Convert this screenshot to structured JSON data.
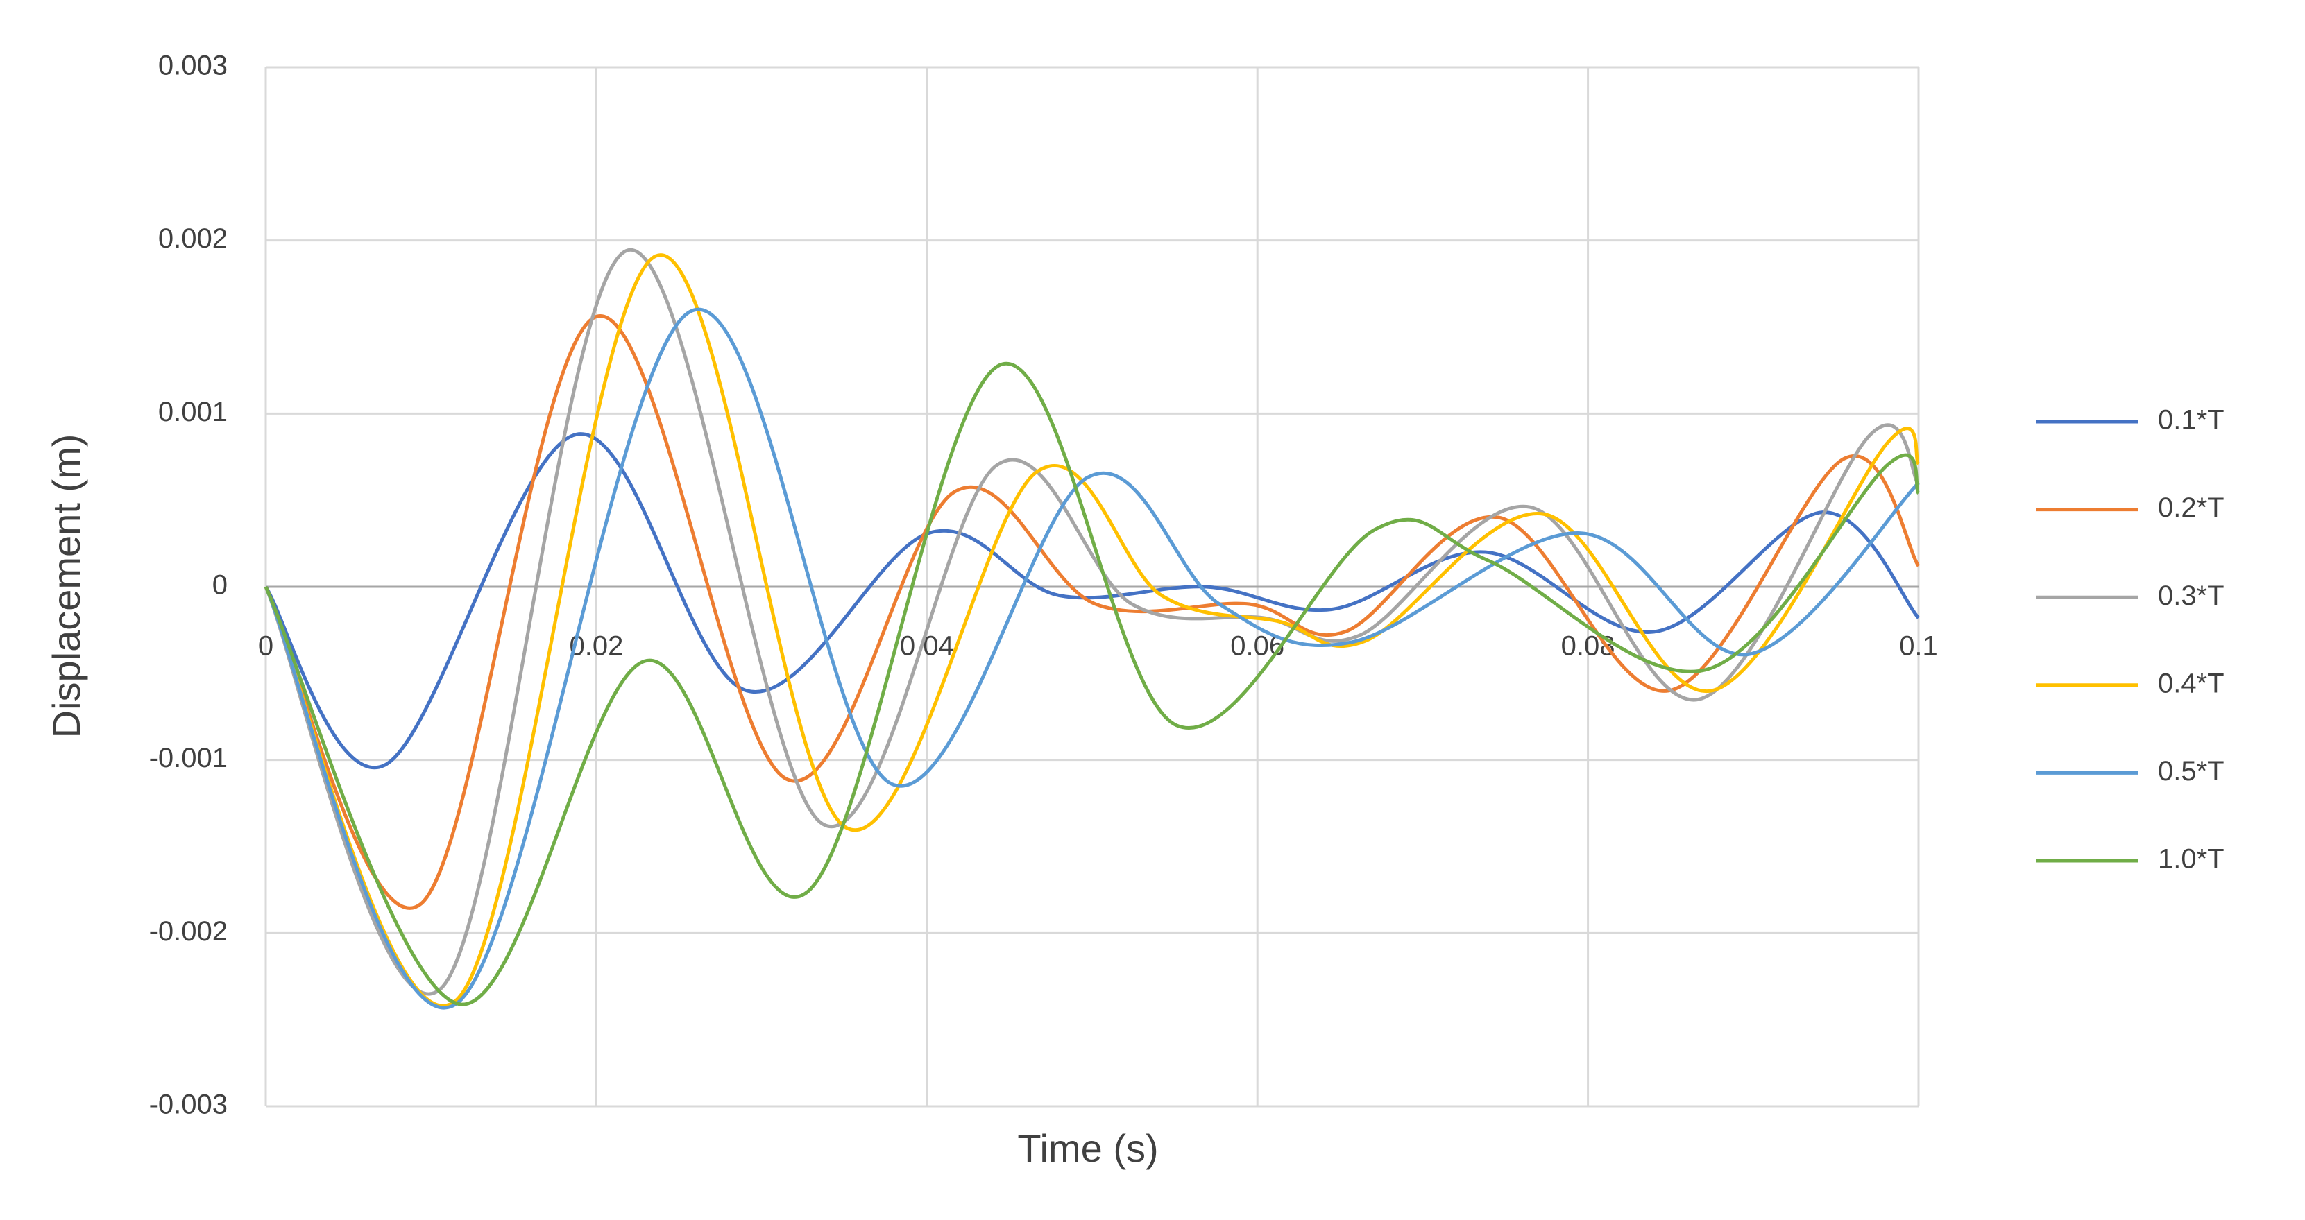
{
  "chart_data": {
    "type": "line",
    "x_label": "Time (s)",
    "y_label": "Displacement (m)",
    "xlim": [
      0,
      0.1
    ],
    "xticks": [
      0,
      0.02,
      0.04,
      0.06,
      0.08,
      0.1
    ],
    "ylim": [
      -0.003,
      0.003
    ],
    "yticks": [
      -0.003,
      -0.002,
      -0.001,
      0,
      0.001,
      0.002,
      0.003
    ],
    "grid": true,
    "legend": "right",
    "smooth": true,
    "series": [
      {
        "name": "0.1*T",
        "color": "#4472c4",
        "x": [
          0,
          0.0072,
          0.0188,
          0.0291,
          0.0401,
          0.048,
          0.0569,
          0.0645,
          0.0738,
          0.084,
          0.0942,
          0.1
        ],
        "values": [
          0,
          -0.00103,
          0.00088,
          -0.0006,
          0.00031,
          -5e-05,
          0,
          -0.00013,
          0.0002,
          -0.00026,
          0.00043,
          -0.00018
        ]
      },
      {
        "name": "0.2*T",
        "color": "#ed7d31",
        "x": [
          0,
          0.0094,
          0.02,
          0.0315,
          0.0417,
          0.0502,
          0.0595,
          0.0653,
          0.0746,
          0.0849,
          0.0955,
          0.1
        ],
        "values": [
          0,
          -0.00183,
          0.00156,
          -0.00111,
          0.00055,
          -0.0001,
          -0.0001,
          -0.00026,
          0.0004,
          -0.0006,
          0.00074,
          0.00012
        ]
      },
      {
        "name": "0.3*T",
        "color": "#a5a5a5",
        "x": [
          0,
          0.0106,
          0.0218,
          0.0337,
          0.0442,
          0.0524,
          0.0604,
          0.0662,
          0.0765,
          0.0867,
          0.0971,
          0.1
        ],
        "values": [
          0,
          -0.00232,
          0.00194,
          -0.00137,
          0.0007,
          -0.0001,
          -0.00018,
          -0.00028,
          0.00046,
          -0.00065,
          0.00088,
          0.00059
        ]
      },
      {
        "name": "0.4*T",
        "color": "#ffc000",
        "x": [
          0,
          0.0115,
          0.0236,
          0.0351,
          0.0466,
          0.0542,
          0.0613,
          0.0666,
          0.0773,
          0.0875,
          0.0982,
          0.1
        ],
        "values": [
          0,
          -0.00239,
          0.00191,
          -0.00139,
          0.00066,
          -5e-05,
          -0.0002,
          -0.00031,
          0.00042,
          -0.0006,
          0.00084,
          0.00071
        ]
      },
      {
        "name": "0.5*T",
        "color": "#5b9bd5",
        "x": [
          0,
          0.0115,
          0.0257,
          0.0379,
          0.0497,
          0.0577,
          0.0657,
          0.0795,
          0.0897,
          0.1
        ],
        "values": [
          0,
          -0.00241,
          0.00159,
          -0.00114,
          0.00063,
          -0.0001,
          -0.00032,
          0.00031,
          -0.00039,
          0.0006
        ]
      },
      {
        "name": "1.0*T",
        "color": "#70ad47",
        "x": [
          0,
          0.0117,
          0.0229,
          0.0328,
          0.0444,
          0.0551,
          0.0671,
          0.074,
          0.0871,
          0.0982,
          0.1
        ],
        "values": [
          0,
          -0.00241,
          -0.00043,
          -0.00176,
          0.00128,
          -0.0008,
          0.00033,
          0.00015,
          -0.00048,
          0.00071,
          0.00054
        ]
      }
    ]
  }
}
